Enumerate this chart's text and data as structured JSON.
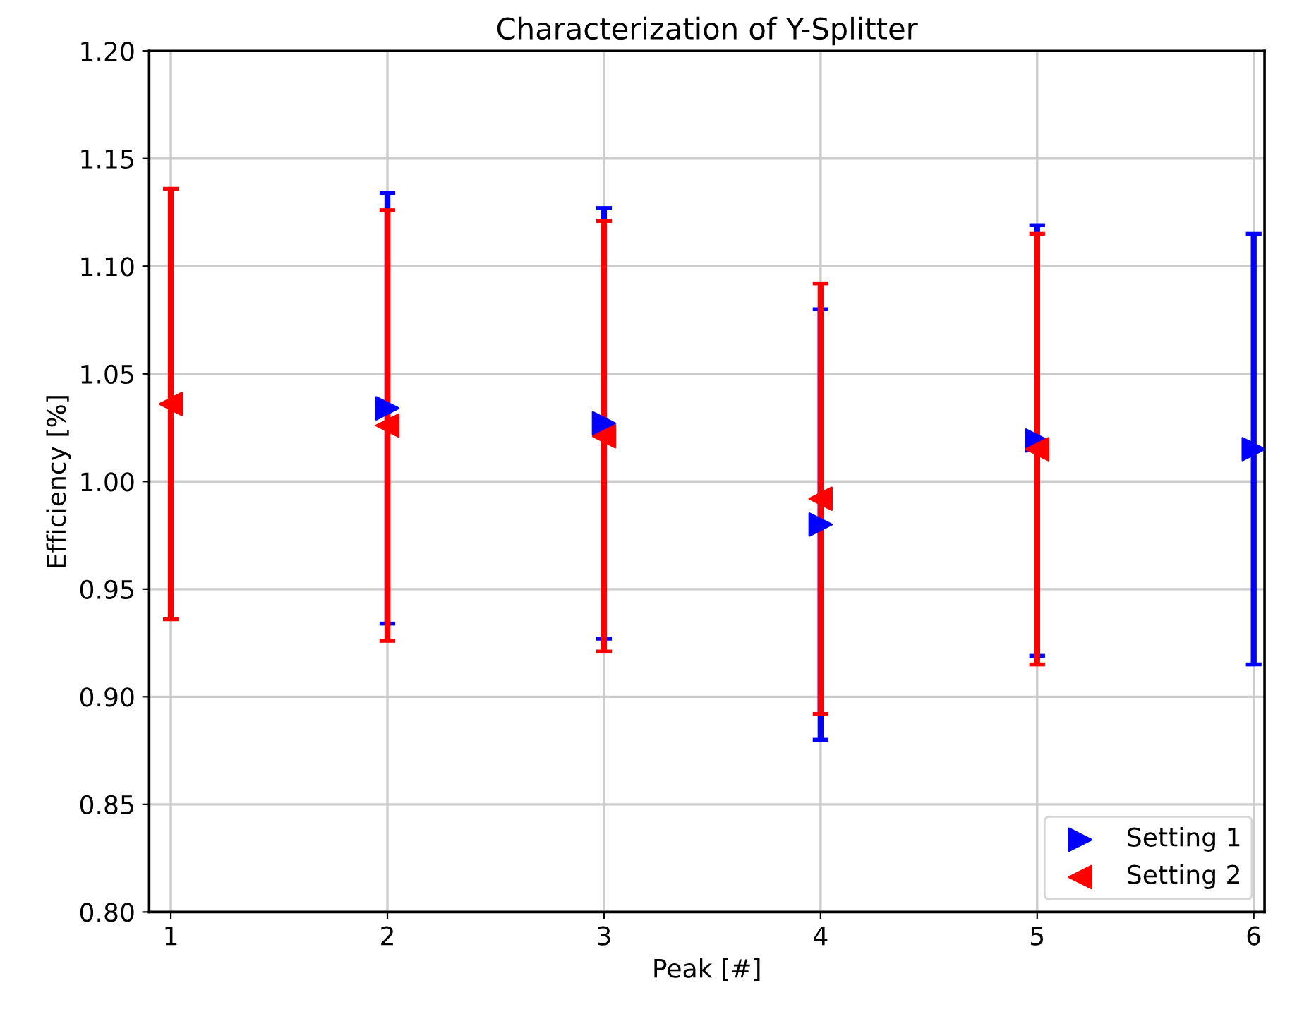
{
  "chart_data": {
    "type": "scatter",
    "title": "Characterization of Y-Splitter",
    "xlabel": "Peak [#]",
    "ylabel": "Efficiency [%]",
    "x": [
      1,
      2,
      3,
      4,
      5,
      6
    ],
    "series": [
      {
        "name": "Setting 1",
        "color": "#0000ff",
        "marker": "triangle_right",
        "values": [
          null,
          1.034,
          1.027,
          0.98,
          1.019,
          1.015
        ],
        "errors": [
          null,
          0.1,
          0.1,
          0.1,
          0.1,
          0.1
        ]
      },
      {
        "name": "Setting 2",
        "color": "#ff0000",
        "marker": "triangle_left",
        "values": [
          1.036,
          1.026,
          1.021,
          0.992,
          1.015,
          null
        ],
        "errors": [
          0.1,
          0.1,
          0.1,
          0.1,
          0.1,
          null
        ]
      }
    ],
    "xlim": [
      0.9,
      6.05
    ],
    "xticks": [
      1,
      2,
      3,
      4,
      5,
      6
    ],
    "ylim": [
      0.8,
      1.2
    ],
    "yticks": [
      {
        "value": 0.8,
        "label": "0.80"
      },
      {
        "value": 0.85,
        "label": "0.85"
      },
      {
        "value": 0.9,
        "label": "0.90"
      },
      {
        "value": 0.95,
        "label": "0.95"
      },
      {
        "value": 1.0,
        "label": "1.00"
      },
      {
        "value": 1.05,
        "label": "1.05"
      },
      {
        "value": 1.1,
        "label": "1.10"
      },
      {
        "value": 1.15,
        "label": "1.15"
      },
      {
        "value": 1.2,
        "label": "1.20"
      }
    ],
    "grid": true,
    "legend": "bottom right"
  }
}
